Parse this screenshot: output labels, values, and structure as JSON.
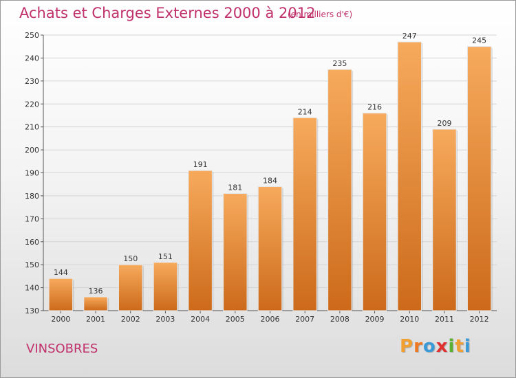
{
  "header": {
    "title": "Achats et Charges Externes 2000 à 2012",
    "subtitle": "(en milliers d'€)"
  },
  "footer": {
    "commune": "VINSOBRES",
    "logo_text": "Proxiti",
    "logo_colors": [
      "#f0a030",
      "#f07820",
      "#3a9ad8",
      "#e03030",
      "#5ab030",
      "#f0a030",
      "#3a9ad8"
    ]
  },
  "colors": {
    "bar_top": "#f7aa5c",
    "bar_bottom": "#cc6a1a",
    "text_accent": "#c0306a"
  },
  "chart_data": {
    "type": "bar",
    "categories": [
      "2000",
      "2001",
      "2002",
      "2003",
      "2004",
      "2005",
      "2006",
      "2007",
      "2008",
      "2009",
      "2010",
      "2011",
      "2012"
    ],
    "values": [
      144,
      136,
      150,
      151,
      191,
      181,
      184,
      214,
      235,
      216,
      247,
      209,
      245
    ],
    "ylim": [
      130,
      250
    ],
    "yticks": [
      130,
      140,
      150,
      160,
      170,
      180,
      190,
      200,
      210,
      220,
      230,
      240,
      250
    ],
    "grid": true,
    "data_labels": true
  }
}
